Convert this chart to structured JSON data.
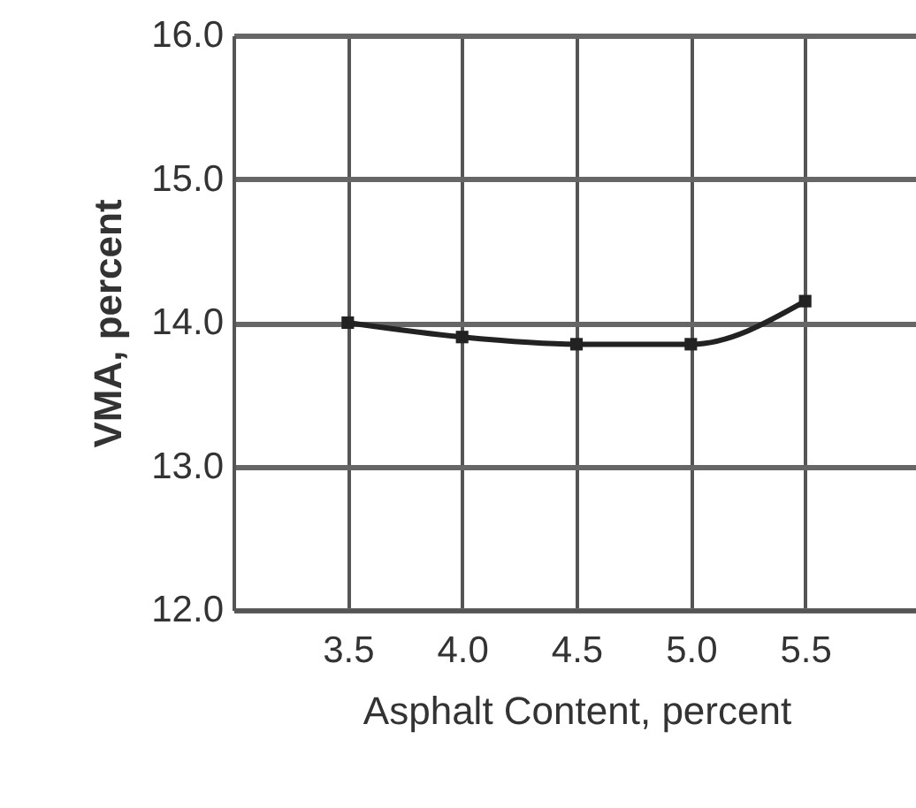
{
  "chart_data": {
    "type": "line",
    "xlabel": "Asphalt Content, percent",
    "ylabel": "VMA, percent",
    "x": [
      3.5,
      4.0,
      4.5,
      5.0,
      5.5
    ],
    "series": [
      {
        "color": "#222222",
        "values": [
          14.0,
          13.9,
          13.85,
          13.85,
          14.15
        ]
      }
    ],
    "xlim": [
      3.0,
      6.0
    ],
    "xticks": [
      {
        "value": 3.5,
        "label": "3.5"
      },
      {
        "value": 4.0,
        "label": "4.0"
      },
      {
        "value": 4.5,
        "label": "4.5"
      },
      {
        "value": 5.0,
        "label": "5.0"
      },
      {
        "value": 5.5,
        "label": "5.5"
      }
    ],
    "ylim": [
      12.0,
      16.0
    ],
    "yticks": [
      {
        "value": 12,
        "label": "12.0"
      },
      {
        "value": 13,
        "label": "13.0"
      },
      {
        "value": 14,
        "label": "14.0"
      },
      {
        "value": 15,
        "label": "15.0"
      },
      {
        "value": 16,
        "label": "16.0"
      }
    ],
    "grid": true,
    "marker": "square",
    "line_style": "solid"
  }
}
